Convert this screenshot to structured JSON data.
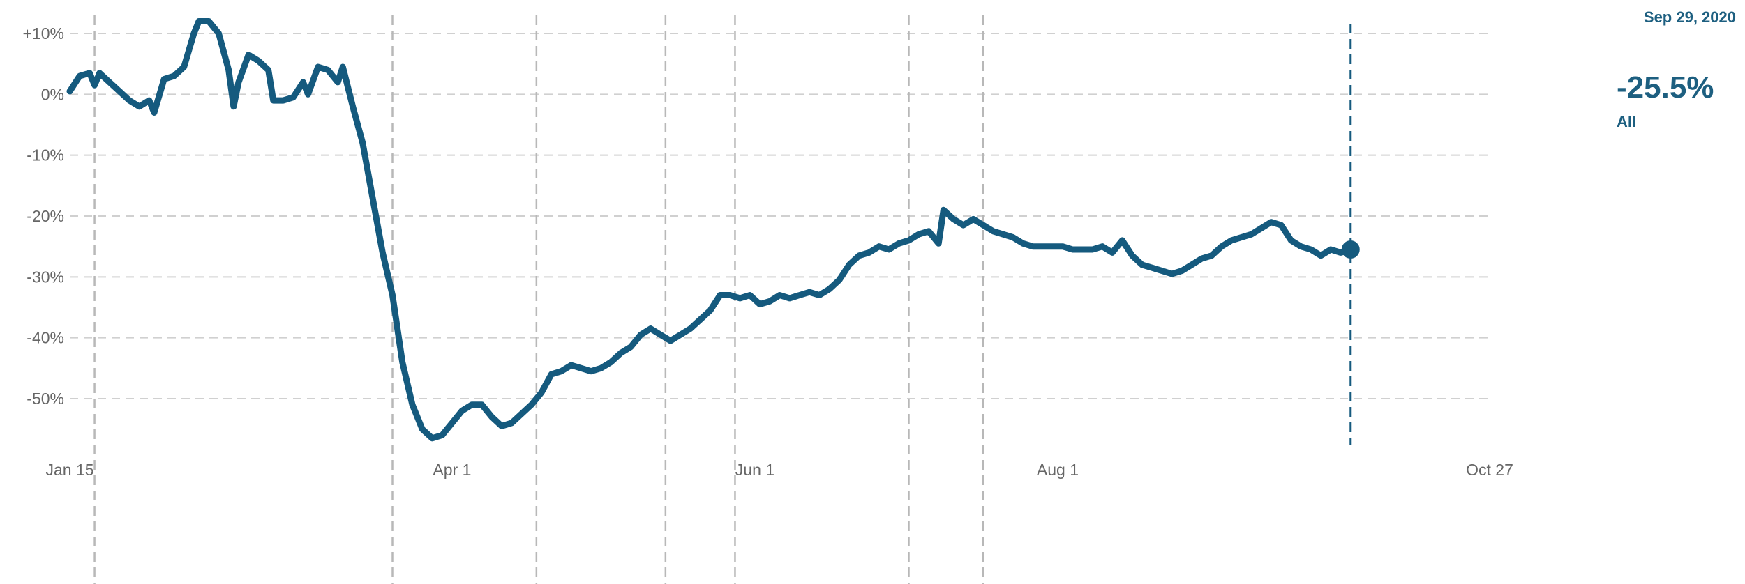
{
  "chart_data": {
    "type": "line",
    "xlabel": "",
    "ylabel": "",
    "x_ticks": [
      {
        "date": "2020-01-15",
        "label": "Jan 15"
      },
      {
        "date": "2020-04-01",
        "label": "Apr 1"
      },
      {
        "date": "2020-06-01",
        "label": "Jun 1"
      },
      {
        "date": "2020-08-01",
        "label": "Aug 1"
      },
      {
        "date": "2020-10-27",
        "label": "Oct 27"
      }
    ],
    "xlim": [
      "2020-01-15",
      "2020-10-27"
    ],
    "y_ticks": [
      {
        "value": 10,
        "label": "+10%"
      },
      {
        "value": 0,
        "label": "0%"
      },
      {
        "value": -10,
        "label": "-10%"
      },
      {
        "value": -20,
        "label": "-20%"
      },
      {
        "value": -30,
        "label": "-30%"
      },
      {
        "value": -40,
        "label": "-40%"
      },
      {
        "value": -50,
        "label": "-50%"
      }
    ],
    "ylim": [
      -59,
      13
    ],
    "grid": true,
    "event_lines": [
      "2020-01-20",
      "2020-03-20",
      "2020-04-18",
      "2020-05-14",
      "2020-05-28",
      "2020-07-02",
      "2020-07-17"
    ],
    "highlight": {
      "date": "2020-09-29",
      "date_label": "Sep 29, 2020",
      "value": -25.5,
      "value_label": "-25.5%",
      "series_label": "All"
    },
    "colors": {
      "line": "#155a7e",
      "grid": "#d0d0d0",
      "event": "#b8b8b8",
      "highlight_text": "#1d5f80"
    },
    "series": [
      {
        "name": "All",
        "points": [
          [
            "2020-01-15",
            0.5
          ],
          [
            "2020-01-17",
            3
          ],
          [
            "2020-01-19",
            3.5
          ],
          [
            "2020-01-20",
            1.5
          ],
          [
            "2020-01-21",
            3.5
          ],
          [
            "2020-01-23",
            2
          ],
          [
            "2020-01-25",
            0.5
          ],
          [
            "2020-01-27",
            -1
          ],
          [
            "2020-01-29",
            -2
          ],
          [
            "2020-01-31",
            -1
          ],
          [
            "2020-02-01",
            -3
          ],
          [
            "2020-02-03",
            2.5
          ],
          [
            "2020-02-05",
            3
          ],
          [
            "2020-02-07",
            4.5
          ],
          [
            "2020-02-09",
            10
          ],
          [
            "2020-02-10",
            12
          ],
          [
            "2020-02-12",
            12
          ],
          [
            "2020-02-14",
            10
          ],
          [
            "2020-02-16",
            4
          ],
          [
            "2020-02-17",
            -2
          ],
          [
            "2020-02-18",
            2
          ],
          [
            "2020-02-20",
            6.5
          ],
          [
            "2020-02-22",
            5.5
          ],
          [
            "2020-02-24",
            4
          ],
          [
            "2020-02-25",
            -1
          ],
          [
            "2020-02-27",
            -1
          ],
          [
            "2020-02-29",
            -0.5
          ],
          [
            "2020-03-02",
            2
          ],
          [
            "2020-03-03",
            0
          ],
          [
            "2020-03-05",
            4.5
          ],
          [
            "2020-03-07",
            4
          ],
          [
            "2020-03-09",
            2
          ],
          [
            "2020-03-10",
            4.5
          ],
          [
            "2020-03-12",
            -2
          ],
          [
            "2020-03-14",
            -8
          ],
          [
            "2020-03-16",
            -17
          ],
          [
            "2020-03-18",
            -26
          ],
          [
            "2020-03-20",
            -33
          ],
          [
            "2020-03-22",
            -44
          ],
          [
            "2020-03-24",
            -51
          ],
          [
            "2020-03-26",
            -55
          ],
          [
            "2020-03-28",
            -56.5
          ],
          [
            "2020-03-30",
            -56
          ],
          [
            "2020-04-01",
            -54
          ],
          [
            "2020-04-03",
            -52
          ],
          [
            "2020-04-05",
            -51
          ],
          [
            "2020-04-07",
            -51
          ],
          [
            "2020-04-09",
            -53
          ],
          [
            "2020-04-11",
            -54.5
          ],
          [
            "2020-04-13",
            -54
          ],
          [
            "2020-04-15",
            -52.5
          ],
          [
            "2020-04-17",
            -51
          ],
          [
            "2020-04-19",
            -49
          ],
          [
            "2020-04-21",
            -46
          ],
          [
            "2020-04-23",
            -45.5
          ],
          [
            "2020-04-25",
            -44.5
          ],
          [
            "2020-04-27",
            -45
          ],
          [
            "2020-04-29",
            -45.5
          ],
          [
            "2020-05-01",
            -45
          ],
          [
            "2020-05-03",
            -44
          ],
          [
            "2020-05-05",
            -42.5
          ],
          [
            "2020-05-07",
            -41.5
          ],
          [
            "2020-05-09",
            -39.5
          ],
          [
            "2020-05-11",
            -38.5
          ],
          [
            "2020-05-13",
            -39.5
          ],
          [
            "2020-05-15",
            -40.5
          ],
          [
            "2020-05-17",
            -39.5
          ],
          [
            "2020-05-19",
            -38.5
          ],
          [
            "2020-05-21",
            -37
          ],
          [
            "2020-05-23",
            -35.5
          ],
          [
            "2020-05-25",
            -33
          ],
          [
            "2020-05-27",
            -33
          ],
          [
            "2020-05-29",
            -33.5
          ],
          [
            "2020-05-31",
            -33
          ],
          [
            "2020-06-02",
            -34.5
          ],
          [
            "2020-06-04",
            -34
          ],
          [
            "2020-06-06",
            -33
          ],
          [
            "2020-06-08",
            -33.5
          ],
          [
            "2020-06-10",
            -33
          ],
          [
            "2020-06-12",
            -32.5
          ],
          [
            "2020-06-14",
            -33
          ],
          [
            "2020-06-16",
            -32
          ],
          [
            "2020-06-18",
            -30.5
          ],
          [
            "2020-06-20",
            -28
          ],
          [
            "2020-06-22",
            -26.5
          ],
          [
            "2020-06-24",
            -26
          ],
          [
            "2020-06-26",
            -25
          ],
          [
            "2020-06-28",
            -25.5
          ],
          [
            "2020-06-30",
            -24.5
          ],
          [
            "2020-07-02",
            -24
          ],
          [
            "2020-07-04",
            -23
          ],
          [
            "2020-07-06",
            -22.5
          ],
          [
            "2020-07-08",
            -24.5
          ],
          [
            "2020-07-09",
            -19
          ],
          [
            "2020-07-11",
            -20.5
          ],
          [
            "2020-07-13",
            -21.5
          ],
          [
            "2020-07-15",
            -20.5
          ],
          [
            "2020-07-17",
            -21.5
          ],
          [
            "2020-07-19",
            -22.5
          ],
          [
            "2020-07-21",
            -23
          ],
          [
            "2020-07-23",
            -23.5
          ],
          [
            "2020-07-25",
            -24.5
          ],
          [
            "2020-07-27",
            -25
          ],
          [
            "2020-07-29",
            -25
          ],
          [
            "2020-07-31",
            -25
          ],
          [
            "2020-08-02",
            -25
          ],
          [
            "2020-08-04",
            -25.5
          ],
          [
            "2020-08-06",
            -25.5
          ],
          [
            "2020-08-08",
            -25.5
          ],
          [
            "2020-08-10",
            -25
          ],
          [
            "2020-08-12",
            -26
          ],
          [
            "2020-08-14",
            -24
          ],
          [
            "2020-08-16",
            -26.5
          ],
          [
            "2020-08-18",
            -28
          ],
          [
            "2020-08-20",
            -28.5
          ],
          [
            "2020-08-22",
            -29
          ],
          [
            "2020-08-24",
            -29.5
          ],
          [
            "2020-08-26",
            -29
          ],
          [
            "2020-08-28",
            -28
          ],
          [
            "2020-08-30",
            -27
          ],
          [
            "2020-09-01",
            -26.5
          ],
          [
            "2020-09-03",
            -25
          ],
          [
            "2020-09-05",
            -24
          ],
          [
            "2020-09-07",
            -23.5
          ],
          [
            "2020-09-09",
            -23
          ],
          [
            "2020-09-11",
            -22
          ],
          [
            "2020-09-13",
            -21
          ],
          [
            "2020-09-15",
            -21.5
          ],
          [
            "2020-09-17",
            -24
          ],
          [
            "2020-09-19",
            -25
          ],
          [
            "2020-09-21",
            -25.5
          ],
          [
            "2020-09-23",
            -26.5
          ],
          [
            "2020-09-25",
            -25.5
          ],
          [
            "2020-09-27",
            -26
          ],
          [
            "2020-09-29",
            -25.5
          ]
        ]
      }
    ]
  }
}
